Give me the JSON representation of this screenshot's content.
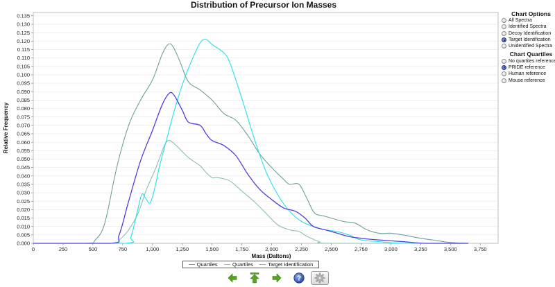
{
  "chart_data": {
    "type": "line",
    "title": "Distribution of Precursor Ion Masses",
    "xlabel": "Mass (Daltons)",
    "ylabel": "Relative Frequency",
    "xlim": [
      0,
      3900
    ],
    "ylim": [
      0,
      0.137
    ],
    "x_ticks": [
      0,
      250,
      500,
      750,
      1000,
      1250,
      1500,
      1750,
      2000,
      2250,
      2500,
      2750,
      3000,
      3250,
      3500,
      3750
    ],
    "x_tick_labels": [
      "0",
      "250",
      "500",
      "750",
      "1,000",
      "1,250",
      "1,500",
      "1,750",
      "2,000",
      "2,250",
      "2,500",
      "2,750",
      "3,000",
      "3,250",
      "3,500",
      "3,750"
    ],
    "y_ticks": [
      0,
      0.005,
      0.01,
      0.015,
      0.02,
      0.025,
      0.03,
      0.035,
      0.04,
      0.045,
      0.05,
      0.055,
      0.06,
      0.065,
      0.07,
      0.075,
      0.08,
      0.085,
      0.09,
      0.095,
      0.1,
      0.105,
      0.11,
      0.115,
      0.12,
      0.125,
      0.13,
      0.135
    ],
    "y_tick_labels": [
      "0.000",
      "0.005",
      "0.010",
      "0.015",
      "0.020",
      "0.025",
      "0.030",
      "0.035",
      "0.040",
      "0.045",
      "0.050",
      "0.055",
      "0.060",
      "0.065",
      "0.070",
      "0.075",
      "0.080",
      "0.085",
      "0.090",
      "0.095",
      "0.100",
      "0.105",
      "0.110",
      "0.115",
      "0.120",
      "0.125",
      "0.130",
      "0.135"
    ],
    "legend_position": "bottom",
    "series": [
      {
        "name": "Quartiles",
        "color": "#6f9f9a",
        "points": [
          [
            0,
            0
          ],
          [
            450,
            0
          ],
          [
            520,
            0.002
          ],
          [
            600,
            0.012
          ],
          [
            700,
            0.045
          ],
          [
            800,
            0.07
          ],
          [
            900,
            0.085
          ],
          [
            1000,
            0.097
          ],
          [
            1080,
            0.112
          ],
          [
            1130,
            0.118
          ],
          [
            1170,
            0.117
          ],
          [
            1230,
            0.108
          ],
          [
            1300,
            0.096
          ],
          [
            1400,
            0.091
          ],
          [
            1500,
            0.085
          ],
          [
            1600,
            0.077
          ],
          [
            1700,
            0.073
          ],
          [
            1800,
            0.064
          ],
          [
            1900,
            0.053
          ],
          [
            2000,
            0.045
          ],
          [
            2100,
            0.038
          ],
          [
            2150,
            0.035
          ],
          [
            2230,
            0.035
          ],
          [
            2300,
            0.026
          ],
          [
            2360,
            0.018
          ],
          [
            2450,
            0.016
          ],
          [
            2600,
            0.013
          ],
          [
            2700,
            0.012
          ],
          [
            2800,
            0.008
          ],
          [
            2900,
            0.006
          ],
          [
            3000,
            0.006
          ],
          [
            3100,
            0.005
          ],
          [
            3250,
            0.003
          ],
          [
            3350,
            0.002
          ],
          [
            3500,
            0.0005
          ],
          [
            3650,
            0
          ]
        ]
      },
      {
        "name": "Quartiles",
        "color": "#8fbdb3",
        "points": [
          [
            0,
            0
          ],
          [
            650,
            0
          ],
          [
            720,
            0.002
          ],
          [
            800,
            0.008
          ],
          [
            880,
            0.018
          ],
          [
            950,
            0.032
          ],
          [
            1030,
            0.045
          ],
          [
            1100,
            0.058
          ],
          [
            1140,
            0.061
          ],
          [
            1200,
            0.058
          ],
          [
            1300,
            0.051
          ],
          [
            1400,
            0.046
          ],
          [
            1450,
            0.042
          ],
          [
            1500,
            0.039
          ],
          [
            1550,
            0.039
          ],
          [
            1650,
            0.037
          ],
          [
            1750,
            0.031
          ],
          [
            1850,
            0.025
          ],
          [
            1950,
            0.018
          ],
          [
            2050,
            0.011
          ],
          [
            2150,
            0.008
          ],
          [
            2230,
            0.007
          ],
          [
            2300,
            0.004
          ],
          [
            2400,
            0.001
          ],
          [
            2500,
            0
          ],
          [
            3650,
            0
          ]
        ]
      },
      {
        "name": "Target Identification",
        "color": "#22e0ea",
        "points": [
          [
            0,
            0
          ],
          [
            770,
            0
          ],
          [
            820,
            0.004
          ],
          [
            870,
            0.018
          ],
          [
            910,
            0.029
          ],
          [
            940,
            0.027
          ],
          [
            980,
            0.024
          ],
          [
            1020,
            0.033
          ],
          [
            1060,
            0.046
          ],
          [
            1120,
            0.062
          ],
          [
            1180,
            0.078
          ],
          [
            1250,
            0.094
          ],
          [
            1320,
            0.107
          ],
          [
            1400,
            0.119
          ],
          [
            1450,
            0.121
          ],
          [
            1500,
            0.118
          ],
          [
            1600,
            0.113
          ],
          [
            1650,
            0.107
          ],
          [
            1750,
            0.086
          ],
          [
            1850,
            0.063
          ],
          [
            1950,
            0.043
          ],
          [
            2050,
            0.029
          ],
          [
            2150,
            0.019
          ],
          [
            2250,
            0.013
          ],
          [
            2350,
            0.01
          ],
          [
            2450,
            0.008
          ],
          [
            2550,
            0.007
          ],
          [
            2650,
            0.005
          ],
          [
            2750,
            0.002
          ],
          [
            2900,
            0.001
          ],
          [
            3100,
            0
          ],
          [
            3650,
            0
          ]
        ]
      },
      {
        "name": "",
        "color": "#4b3fe0",
        "points": [
          [
            0,
            0
          ],
          [
            650,
            0
          ],
          [
            720,
            0.005
          ],
          [
            800,
            0.025
          ],
          [
            900,
            0.049
          ],
          [
            1000,
            0.067
          ],
          [
            1080,
            0.082
          ],
          [
            1140,
            0.089
          ],
          [
            1180,
            0.088
          ],
          [
            1250,
            0.079
          ],
          [
            1300,
            0.072
          ],
          [
            1400,
            0.07
          ],
          [
            1450,
            0.065
          ],
          [
            1500,
            0.061
          ],
          [
            1600,
            0.058
          ],
          [
            1700,
            0.052
          ],
          [
            1800,
            0.041
          ],
          [
            1900,
            0.032
          ],
          [
            2000,
            0.026
          ],
          [
            2100,
            0.021
          ],
          [
            2200,
            0.019
          ],
          [
            2280,
            0.015
          ],
          [
            2350,
            0.01
          ],
          [
            2450,
            0.008
          ],
          [
            2550,
            0.006
          ],
          [
            2650,
            0.004
          ],
          [
            2750,
            0.003
          ],
          [
            2900,
            0.002
          ],
          [
            3100,
            0.001
          ],
          [
            3300,
            0
          ],
          [
            3650,
            0
          ]
        ]
      }
    ]
  },
  "chart_options": {
    "heading": "Chart Options",
    "items": [
      {
        "label": "All Spectra",
        "selected": false
      },
      {
        "label": "Identified Spectra",
        "selected": false
      },
      {
        "label": "Decoy Identification",
        "selected": false
      },
      {
        "label": "Target Identification",
        "selected": true
      },
      {
        "label": "Unidentified Spectra",
        "selected": false
      }
    ]
  },
  "chart_quartiles": {
    "heading": "Chart Quartiles",
    "items": [
      {
        "label": "No quartiles reference",
        "selected": false
      },
      {
        "label": "PRIDE reference",
        "selected": true
      },
      {
        "label": "Human reference",
        "selected": false
      },
      {
        "label": "Mouse reference",
        "selected": false
      }
    ]
  },
  "legend": {
    "items": [
      {
        "label": "Quartiles",
        "color": "#6f9f9a"
      },
      {
        "label": "Quartiles",
        "color": "#8fbdb3"
      },
      {
        "label": "Target Identification",
        "color": "#22e0ea"
      }
    ]
  },
  "toolbar": {
    "buttons": [
      {
        "name": "back-button",
        "icon": "arrow-left-icon"
      },
      {
        "name": "home-button",
        "icon": "arrow-up-bar-icon"
      },
      {
        "name": "forward-button",
        "icon": "arrow-right-icon"
      },
      {
        "name": "help-button",
        "icon": "help-icon"
      },
      {
        "name": "settings-button",
        "icon": "gear-icon"
      }
    ],
    "help_glyph": "?"
  }
}
